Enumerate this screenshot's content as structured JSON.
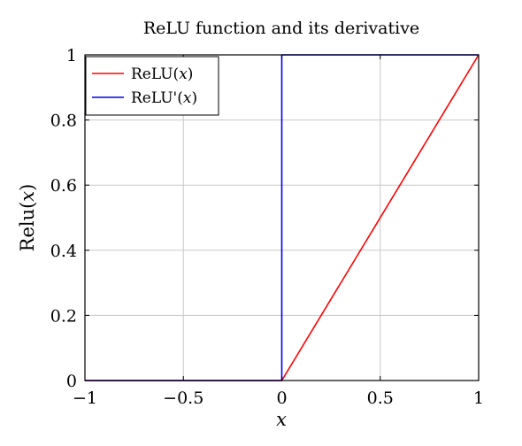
{
  "chart_data": {
    "type": "line",
    "title": "ReLU function and its derivative",
    "xlabel": "x",
    "ylabel_prefix": "Relu(",
    "ylabel_var": "x",
    "ylabel_suffix": ")",
    "xlim": [
      -1,
      1
    ],
    "ylim": [
      0,
      1
    ],
    "grid": true,
    "legend_position": "top-left",
    "x_ticks": [
      -1,
      -0.5,
      0,
      0.5,
      1
    ],
    "x_tick_labels": [
      "−1",
      "−0.5",
      "0",
      "0.5",
      "1"
    ],
    "y_ticks": [
      0,
      0.2,
      0.4,
      0.6,
      0.8,
      1
    ],
    "y_tick_labels": [
      "0",
      "0.2",
      "0.4",
      "0.6",
      "0.8",
      "1"
    ],
    "series": [
      {
        "name_prefix": "ReLU(",
        "name_var": "x",
        "name_suffix": ")",
        "color": "#ff0000",
        "x": [
          -1,
          0,
          1
        ],
        "y": [
          0,
          0,
          1
        ]
      },
      {
        "name_prefix": "ReLU'(",
        "name_var": "x",
        "name_suffix": ")",
        "color": "#0000ff",
        "x": [
          -1,
          0,
          0,
          1
        ],
        "y": [
          0,
          0,
          1,
          1
        ]
      }
    ]
  }
}
